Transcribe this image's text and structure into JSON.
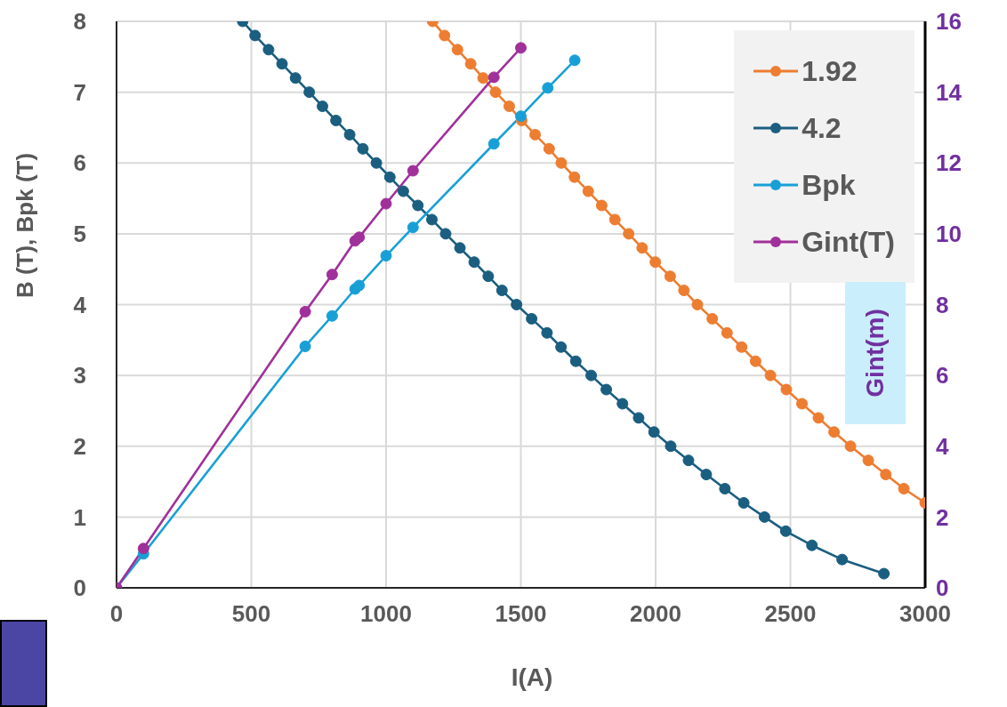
{
  "chart_data": {
    "type": "line",
    "xlabel": "I(A)",
    "ylabel": "B (T), Bpk (T)",
    "y2label": "Gint(m)",
    "xlim": [
      0,
      3000
    ],
    "xticks": [
      0,
      500,
      1000,
      1500,
      2000,
      2500,
      3000
    ],
    "ylim": [
      0,
      8
    ],
    "yticks": [
      0,
      1,
      2,
      3,
      4,
      5,
      6,
      7,
      8
    ],
    "y2lim": [
      0,
      16
    ],
    "y2ticks": [
      0,
      2,
      4,
      6,
      8,
      10,
      12,
      14,
      16
    ],
    "grid": true,
    "legend": "top right",
    "marker": "circle",
    "line_style": "solid",
    "series": [
      {
        "name": "1.92",
        "color": "#ed7d31",
        "x": [
          1173,
          1217,
          1265,
          1314,
          1360,
          1406,
          1457,
          1503,
          1553,
          1605,
          1650,
          1699,
          1750,
          1800,
          1849,
          1900,
          1950,
          1999,
          2054,
          2105,
          2155,
          2210,
          2265,
          2319,
          2371,
          2426,
          2485,
          2543,
          2604,
          2662,
          2723,
          2789,
          2854,
          2921,
          3000
        ],
        "values": [
          8,
          7.8,
          7.6,
          7.4,
          7.2,
          7,
          6.8,
          6.6,
          6.4,
          6.2,
          6,
          5.8,
          5.6,
          5.4,
          5.2,
          5,
          4.8,
          4.6,
          4.4,
          4.2,
          4,
          3.8,
          3.6,
          3.4,
          3.2,
          3,
          2.8,
          2.6,
          2.4,
          2.2,
          2,
          1.8,
          1.6,
          1.4,
          1.2
        ]
      },
      {
        "name": "4.2",
        "color": "#1a5e80",
        "x": [
          468,
          514,
          564,
          614,
          664,
          715,
          764,
          814,
          865,
          914,
          964,
          1014,
          1064,
          1118,
          1170,
          1221,
          1274,
          1327,
          1379,
          1430,
          1484,
          1540,
          1597,
          1649,
          1704,
          1761,
          1817,
          1877,
          1937,
          1994,
          2056,
          2122,
          2188,
          2257,
          2327,
          2404,
          2483,
          2580,
          2692,
          2847
        ],
        "values": [
          8,
          7.8,
          7.6,
          7.4,
          7.2,
          7,
          6.8,
          6.6,
          6.4,
          6.2,
          6,
          5.8,
          5.6,
          5.4,
          5.2,
          5,
          4.8,
          4.6,
          4.4,
          4.2,
          4,
          3.8,
          3.6,
          3.4,
          3.2,
          3,
          2.8,
          2.6,
          2.4,
          2.2,
          2,
          1.8,
          1.6,
          1.4,
          1.2,
          1,
          0.8,
          0.6,
          0.4,
          0.2
        ]
      },
      {
        "name": "Bpk",
        "color": "#18a0d6",
        "x": [
          0,
          100,
          700,
          800,
          885,
          900,
          1000,
          1100,
          1400,
          1500,
          1600,
          1700
        ],
        "values": [
          0,
          0.48,
          3.41,
          3.84,
          4.22,
          4.27,
          4.69,
          5.09,
          6.27,
          6.66,
          7.06,
          7.45
        ]
      },
      {
        "name": "Gint(T)",
        "color": "#a0309a",
        "axis": "y2",
        "x": [
          0,
          100,
          700,
          800,
          885,
          900,
          1000,
          1100,
          1400,
          1500
        ],
        "values": [
          0,
          1.11,
          7.8,
          8.85,
          9.8,
          9.9,
          10.85,
          11.78,
          14.42,
          15.25
        ]
      }
    ]
  }
}
